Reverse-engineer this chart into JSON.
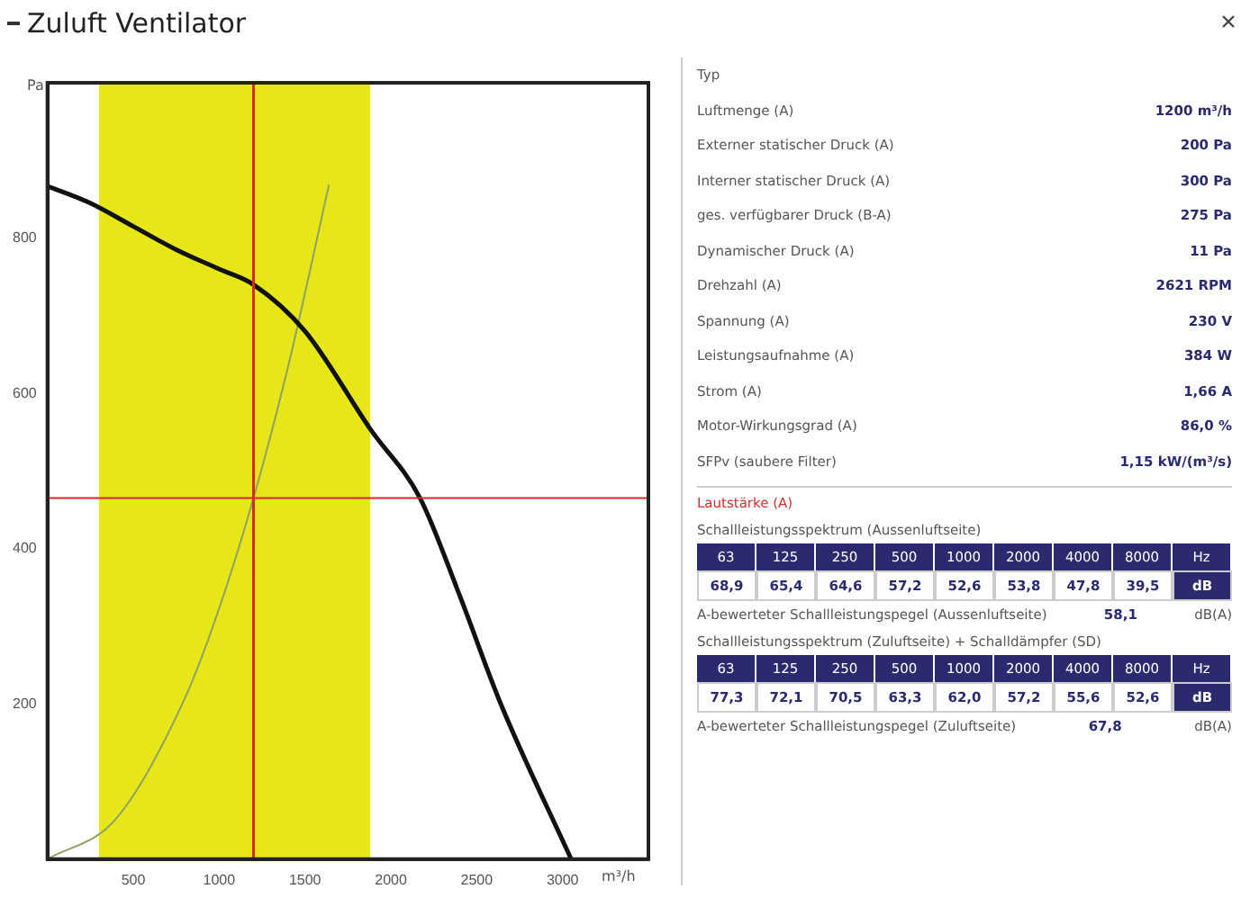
{
  "chart_data": [
    {
      "type": "line",
      "title": "Zuluft Ventilator",
      "xlabel": "m³/h",
      "ylabel": "Pa",
      "marker": "none",
      "line_style": "solid",
      "xlim": [
        0,
        3500
      ],
      "ylim": [
        0,
        1000
      ],
      "xticks": [
        500,
        1000,
        1500,
        2000,
        2500,
        3000
      ],
      "yticks": [
        200,
        400,
        600,
        800
      ],
      "series": [
        {
          "color": "#111111",
          "x": [
            0,
            250,
            500,
            750,
            1000,
            1200,
            1500,
            1883,
            2170,
            2400,
            2640,
            3050
          ],
          "values": [
            867,
            845,
            815,
            785,
            760,
            740,
            680,
            553,
            465,
            340,
            200,
            0
          ]
        },
        {
          "color": "#8ea066",
          "x": [
            0,
            400,
            800,
            1000,
            1200,
            1400,
            1640
          ],
          "values": [
            0,
            52,
            207,
            323,
            465,
            633,
            869
          ]
        }
      ],
      "bands": [
        {
          "axis": "x",
          "from": 300,
          "to": 1880,
          "color": "#e6e619"
        }
      ],
      "ref_lines": [
        {
          "axis": "x",
          "value": 1200,
          "color": "#d42a2a"
        },
        {
          "axis": "y",
          "value": 465,
          "color": "#d42a2a"
        }
      ]
    },
    {
      "type": "other",
      "annotations": [
        "Typ",
        "Luftmenge (A)",
        "1200 m³/h",
        "Externer statischer Druck (A)",
        "200 Pa",
        "Interner statischer Druck (A)",
        "300 Pa",
        "ges. verfügbarer Druck (B-A)",
        "275 Pa",
        "Dynamischer Druck (A)",
        "11 Pa",
        "Drehzahl (A)",
        "2621 RPM",
        "Spannung (A)",
        "230 V",
        "Leistungsaufnahme (A)",
        "384 W",
        "Strom (A)",
        "1,66 A",
        "Motor-Wirkungsgrad (A)",
        "86,0 %",
        "SFPv (saubere Filter)",
        "1,15 kW/(m³/s)",
        "Lautstärke (A)",
        "Schallleistungsspektrum (Aussenluftseite)",
        "63",
        "125",
        "250",
        "500",
        "1000",
        "2000",
        "4000",
        "8000",
        "Hz",
        "68,9",
        "65,4",
        "64,6",
        "57,2",
        "52,6",
        "53,8",
        "47,8",
        "39,5",
        "dB",
        "A-bewerteter Schallleistungspegel (Aussenluftseite)",
        "58,1",
        "dB(A)",
        "Schallleistungsspektrum (Zuluftseite) + Schalldämpfer (SD)",
        "63",
        "125",
        "250",
        "500",
        "1000",
        "2000",
        "4000",
        "8000",
        "Hz",
        "77,3",
        "72,1",
        "70,5",
        "63,3",
        "62,0",
        "57,2",
        "55,6",
        "52,6",
        "dB",
        "A-bewerteter Schallleistungspegel (Zuluftseite)",
        "67,8",
        "dB(A)"
      ]
    }
  ]
}
